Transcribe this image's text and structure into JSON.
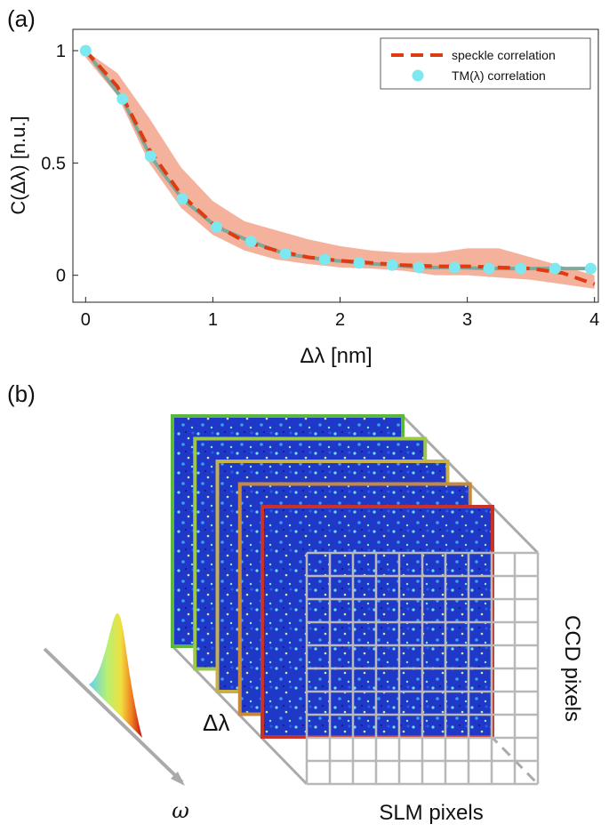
{
  "chart_data": {
    "type": "line",
    "panel_label": "(a)",
    "x_label": "Δλ [nm]",
    "y_label": "C(Δλ) [n.u.]",
    "xlim": [
      -0.1,
      4.03
    ],
    "ylim": [
      -0.12,
      1.095
    ],
    "xticks": [
      0,
      1,
      2,
      3,
      4
    ],
    "yticks": [
      0,
      0.5,
      1
    ],
    "legend": "upper right",
    "series": [
      {
        "name": "speckle correlation",
        "color": "#e03a10",
        "style": "dashed",
        "band_color": "#f2a48c",
        "x": [
          0,
          0.25,
          0.5,
          0.75,
          1,
          1.25,
          1.5,
          1.75,
          2,
          2.25,
          2.5,
          2.75,
          3,
          3.25,
          3.5,
          3.75,
          4
        ],
        "values": [
          1.0,
          0.84,
          0.56,
          0.36,
          0.23,
          0.15,
          0.11,
          0.08,
          0.065,
          0.055,
          0.045,
          0.04,
          0.04,
          0.035,
          0.03,
          0.01,
          -0.04
        ],
        "upper": [
          1.0,
          0.9,
          0.7,
          0.48,
          0.33,
          0.24,
          0.2,
          0.16,
          0.13,
          0.11,
          0.1,
          0.1,
          0.12,
          0.12,
          0.08,
          0.04,
          0.0
        ],
        "lower": [
          0.97,
          0.8,
          0.5,
          0.3,
          0.18,
          0.11,
          0.07,
          0.05,
          0.035,
          0.03,
          0.02,
          0.0,
          0.0,
          -0.01,
          -0.02,
          -0.04,
          -0.06
        ]
      },
      {
        "name": "TM(λ) correlation",
        "color": "#7de8f0",
        "line_color": "#7fa99b",
        "x": [
          0,
          0.29,
          0.51,
          0.76,
          1.03,
          1.3,
          1.57,
          1.88,
          2.15,
          2.41,
          2.62,
          2.9,
          3.17,
          3.42,
          3.69,
          3.97
        ],
        "values": [
          1.0,
          0.785,
          0.53,
          0.34,
          0.215,
          0.15,
          0.095,
          0.07,
          0.055,
          0.045,
          0.035,
          0.035,
          0.03,
          0.03,
          0.03,
          0.03
        ]
      }
    ]
  },
  "diagram": {
    "panel_label": "(b)",
    "delta_label": "Δλ",
    "ccd_label": "CCD pixels",
    "slm_label": "SLM pixels",
    "omega_label": "ω",
    "frame_colors": [
      "#5cb83a",
      "#9cc84a",
      "#c8b048",
      "#c88a3a",
      "#c83228"
    ]
  }
}
